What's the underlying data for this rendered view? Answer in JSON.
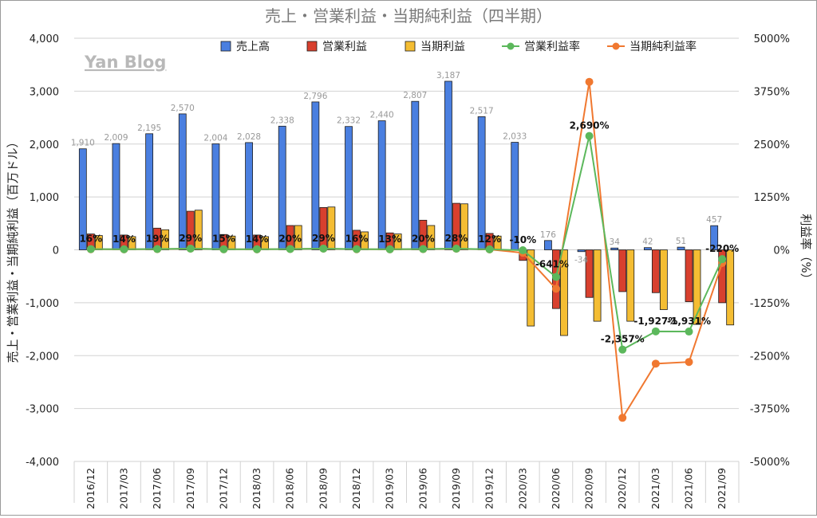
{
  "chart_data": {
    "type": "bar",
    "title": "売上・営業利益・当期純利益（四半期）",
    "watermark": "Yan Blog",
    "ylabel": "売上・営業利益・当期純利益（百万ドル）",
    "y2label": "利益率（%）",
    "ylim": [
      -4000,
      4000
    ],
    "y2lim": [
      -5000,
      5000
    ],
    "yticks": [
      "4,000",
      "3,000",
      "2,000",
      "1,000",
      "0",
      "-1,000",
      "-2,000",
      "-3,000",
      "-4,000"
    ],
    "y2ticks": [
      "5000%",
      "3750%",
      "2500%",
      "1250%",
      "0%",
      "-1250%",
      "-2500%",
      "-3750%",
      "-5000%"
    ],
    "legend_position": "top",
    "grid": "horizontal",
    "categories": [
      "2016/12",
      "2017/03",
      "2017/06",
      "2017/09",
      "2017/12",
      "2018/03",
      "2018/06",
      "2018/09",
      "2018/12",
      "2019/03",
      "2019/06",
      "2019/09",
      "2019/12",
      "2020/03",
      "2020/06",
      "2020/09",
      "2020/12",
      "2021/03",
      "2021/06",
      "2021/09"
    ],
    "series": [
      {
        "name": "売上高",
        "kind": "bar",
        "axis": "left",
        "color": "#4a7fe0",
        "values": [
          1910,
          2009,
          2195,
          2570,
          2004,
          2028,
          2338,
          2796,
          2332,
          2440,
          2807,
          3187,
          2517,
          2033,
          176,
          -34,
          34,
          42,
          51,
          457
        ]
      },
      {
        "name": "営業利益",
        "kind": "bar",
        "axis": "left",
        "color": "#d8402e",
        "values": [
          300,
          280,
          410,
          730,
          290,
          280,
          460,
          800,
          370,
          320,
          560,
          880,
          310,
          -200,
          -1110,
          -900,
          -790,
          -810,
          -980,
          -1000
        ]
      },
      {
        "name": "当期利益",
        "kind": "bar",
        "axis": "left",
        "color": "#f4bd33",
        "values": [
          270,
          250,
          380,
          750,
          260,
          250,
          460,
          810,
          340,
          300,
          460,
          870,
          260,
          -1440,
          -1620,
          -1350,
          -1350,
          -1130,
          -1410,
          -1420
        ]
      },
      {
        "name": "営業利益率",
        "kind": "line",
        "axis": "right",
        "color": "#5cb85c",
        "values": [
          16,
          14,
          19,
          29,
          15,
          14,
          20,
          29,
          16,
          13,
          20,
          28,
          12,
          -10,
          -641,
          2690,
          -2357,
          -1927,
          -1931,
          -220
        ]
      },
      {
        "name": "当期純利益率",
        "kind": "line",
        "axis": "right",
        "color": "#f07830",
        "values": [
          14,
          12,
          17,
          29,
          13,
          12,
          20,
          29,
          15,
          12,
          16,
          27,
          10,
          -71,
          -920,
          3970,
          -3970,
          -2690,
          -2650,
          -310
        ]
      }
    ],
    "revenue_labels": [
      "1,910",
      "2,009",
      "2,195",
      "2,570",
      "2,004",
      "2,028",
      "2,338",
      "2,796",
      "2,332",
      "2,440",
      "2,807",
      "3,187",
      "2,517",
      "2,033",
      "176",
      "-34",
      "34",
      "42",
      "51",
      "457"
    ],
    "op_margin_labels": [
      "16%",
      "14%",
      "19%",
      "29%",
      "15%",
      "14%",
      "20%",
      "29%",
      "16%",
      "13%",
      "20%",
      "28%",
      "12%",
      "-10%",
      "-641%",
      "2,690%",
      "-2,357%",
      "-1,927%",
      "-1,931%",
      "-220%"
    ]
  }
}
